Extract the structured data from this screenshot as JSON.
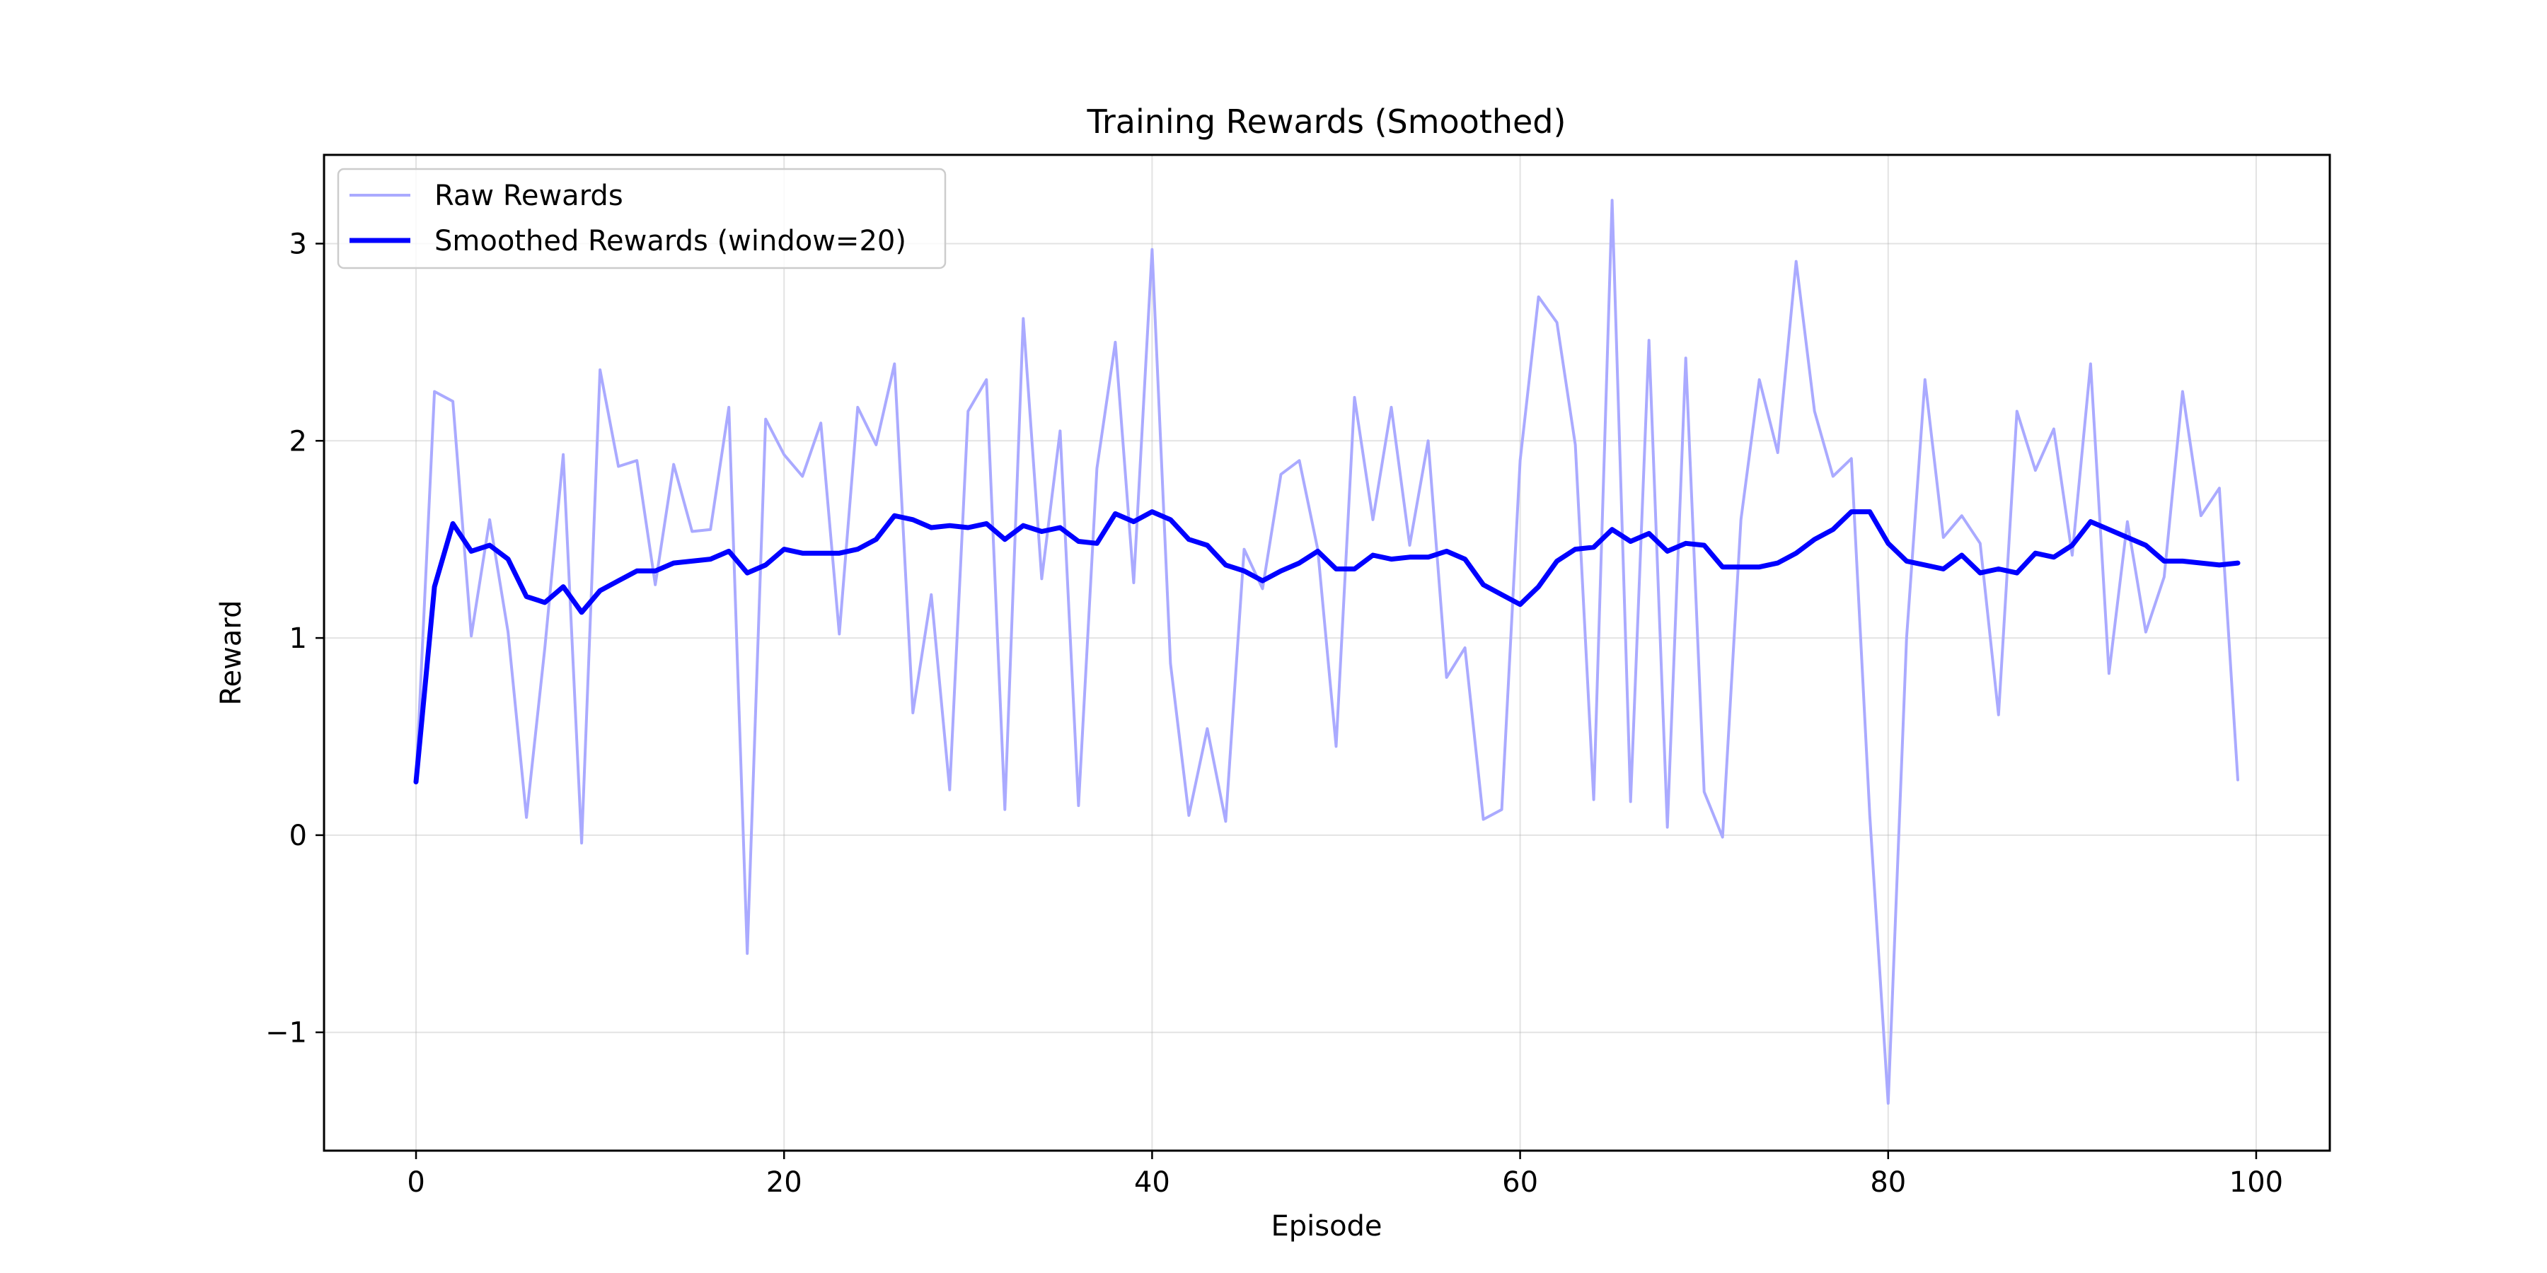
{
  "chart_data": {
    "type": "line",
    "title": "Training Rewards (Smoothed)",
    "xlabel": "Episode",
    "ylabel": "Reward",
    "xlim": [
      -5,
      104
    ],
    "ylim": [
      -1.6,
      3.45
    ],
    "xticks": [
      0,
      20,
      40,
      60,
      80,
      100
    ],
    "yticks": [
      -1,
      0,
      1,
      2,
      3
    ],
    "xtick_labels": [
      "0",
      "20",
      "40",
      "60",
      "80",
      "100"
    ],
    "ytick_labels": [
      "−1",
      "0",
      "1",
      "2",
      "3"
    ],
    "grid": true,
    "legend_position": "top-left",
    "x": [
      0,
      1,
      2,
      3,
      4,
      5,
      6,
      7,
      8,
      9,
      10,
      11,
      12,
      13,
      14,
      15,
      16,
      17,
      18,
      19,
      20,
      21,
      22,
      23,
      24,
      25,
      26,
      27,
      28,
      29,
      30,
      31,
      32,
      33,
      34,
      35,
      36,
      37,
      38,
      39,
      40,
      41,
      42,
      43,
      44,
      45,
      46,
      47,
      48,
      49,
      50,
      51,
      52,
      53,
      54,
      55,
      56,
      57,
      58,
      59,
      60,
      61,
      62,
      63,
      64,
      65,
      66,
      67,
      68,
      69,
      70,
      71,
      72,
      73,
      74,
      75,
      76,
      77,
      78,
      79,
      80,
      81,
      82,
      83,
      84,
      85,
      86,
      87,
      88,
      89,
      90,
      91,
      92,
      93,
      94,
      95,
      96,
      97,
      98,
      99
    ],
    "series": [
      {
        "name": "Raw Rewards",
        "color": "#aaaaff",
        "values": [
          0.27,
          2.25,
          2.2,
          1.01,
          1.6,
          1.03,
          0.09,
          0.95,
          1.93,
          -0.04,
          2.36,
          1.87,
          1.9,
          1.27,
          1.88,
          1.54,
          1.55,
          2.17,
          -0.6,
          2.11,
          1.93,
          1.82,
          2.09,
          1.02,
          2.17,
          1.98,
          2.39,
          0.62,
          1.22,
          0.23,
          2.15,
          2.31,
          0.13,
          2.62,
          1.3,
          2.05,
          0.15,
          1.86,
          2.5,
          1.28,
          2.97,
          0.87,
          0.1,
          0.54,
          0.07,
          1.45,
          1.25,
          1.83,
          1.9,
          1.45,
          0.45,
          2.22,
          1.6,
          2.17,
          1.47,
          2.0,
          0.8,
          0.95,
          0.08,
          0.13,
          1.9,
          2.73,
          2.6,
          1.98,
          0.18,
          3.22,
          0.17,
          2.51,
          0.04,
          2.42,
          0.22,
          -0.01,
          1.6,
          2.31,
          1.94,
          2.91,
          2.15,
          1.82,
          1.91,
          0.1,
          -1.36,
          1.0,
          2.31,
          1.51,
          1.62,
          1.48,
          0.61,
          2.15,
          1.85,
          2.06,
          1.42,
          2.39,
          0.82,
          1.59,
          1.03,
          1.31,
          2.25,
          1.62,
          1.76,
          0.28
        ]
      },
      {
        "name": "Smoothed Rewards (window=20)",
        "color": "#0000ff",
        "values": [
          0.27,
          1.26,
          1.58,
          1.44,
          1.47,
          1.4,
          1.21,
          1.18,
          1.26,
          1.13,
          1.24,
          1.29,
          1.34,
          1.34,
          1.38,
          1.39,
          1.4,
          1.44,
          1.33,
          1.37,
          1.45,
          1.43,
          1.43,
          1.43,
          1.45,
          1.5,
          1.62,
          1.6,
          1.56,
          1.57,
          1.56,
          1.58,
          1.5,
          1.57,
          1.54,
          1.56,
          1.49,
          1.48,
          1.63,
          1.59,
          1.64,
          1.6,
          1.5,
          1.47,
          1.37,
          1.34,
          1.29,
          1.34,
          1.38,
          1.44,
          1.35,
          1.35,
          1.42,
          1.4,
          1.41,
          1.41,
          1.44,
          1.4,
          1.27,
          1.22,
          1.17,
          1.26,
          1.39,
          1.45,
          1.46,
          1.55,
          1.49,
          1.53,
          1.44,
          1.48,
          1.47,
          1.36,
          1.36,
          1.36,
          1.38,
          1.43,
          1.5,
          1.55,
          1.64,
          1.64,
          1.48,
          1.39,
          1.37,
          1.35,
          1.42,
          1.33,
          1.35,
          1.33,
          1.43,
          1.41,
          1.47,
          1.59,
          1.55,
          1.51,
          1.47,
          1.39,
          1.39,
          1.38,
          1.37,
          1.38
        ]
      }
    ]
  }
}
